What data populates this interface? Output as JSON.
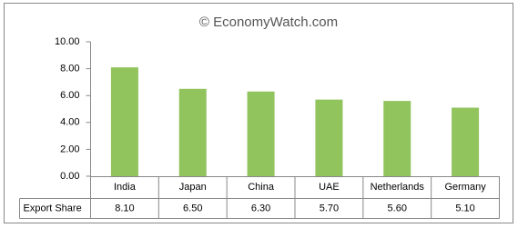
{
  "chart_data": {
    "type": "bar",
    "title": "© EconomyWatch.com",
    "categories": [
      "India",
      "Japan",
      "China",
      "UAE",
      "Netherlands",
      "Germany"
    ],
    "series": [
      {
        "name": "Export Share",
        "color": "#92c45e",
        "values": [
          8.1,
          6.5,
          6.3,
          5.7,
          5.6,
          5.1
        ],
        "value_labels": [
          "8.10",
          "6.50",
          "6.30",
          "5.70",
          "5.60",
          "5.10"
        ]
      }
    ],
    "ylim": [
      0,
      10
    ],
    "yticks": [
      {
        "value": 0,
        "label": "0.00"
      },
      {
        "value": 2,
        "label": "2.00"
      },
      {
        "value": 4,
        "label": "4.00"
      },
      {
        "value": 6,
        "label": "6.00"
      },
      {
        "value": 8,
        "label": "8.00"
      },
      {
        "value": 10,
        "label": "10.00"
      }
    ],
    "grid": false
  }
}
